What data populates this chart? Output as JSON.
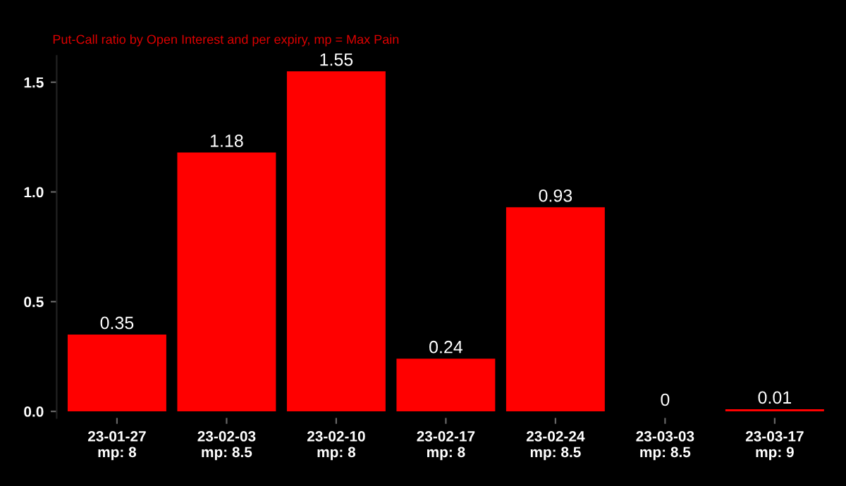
{
  "chart_data": {
    "type": "bar",
    "subtitle": "Put-Call ratio by Open Interest and per expiry, mp = Max Pain",
    "categories": [
      "23-01-27\nmp: 8",
      "23-02-03\nmp: 8.5",
      "23-02-10\nmp: 8",
      "23-02-17\nmp: 8",
      "23-02-24\nmp: 8.5",
      "23-03-03\nmp: 8.5",
      "23-03-17\nmp: 9"
    ],
    "values": [
      0.35,
      1.18,
      1.55,
      0.24,
      0.93,
      0,
      0.01
    ],
    "color": "#ff0000",
    "ylim": [
      -0.03,
      1.62
    ],
    "yticks": [
      {
        "value": 0,
        "label": "0.0"
      },
      {
        "value": 0.5,
        "label": "0.5"
      },
      {
        "value": 1,
        "label": "1.0"
      },
      {
        "value": 1.5,
        "label": "1.5"
      }
    ],
    "data_labels": true,
    "grid": false,
    "legend": false
  }
}
